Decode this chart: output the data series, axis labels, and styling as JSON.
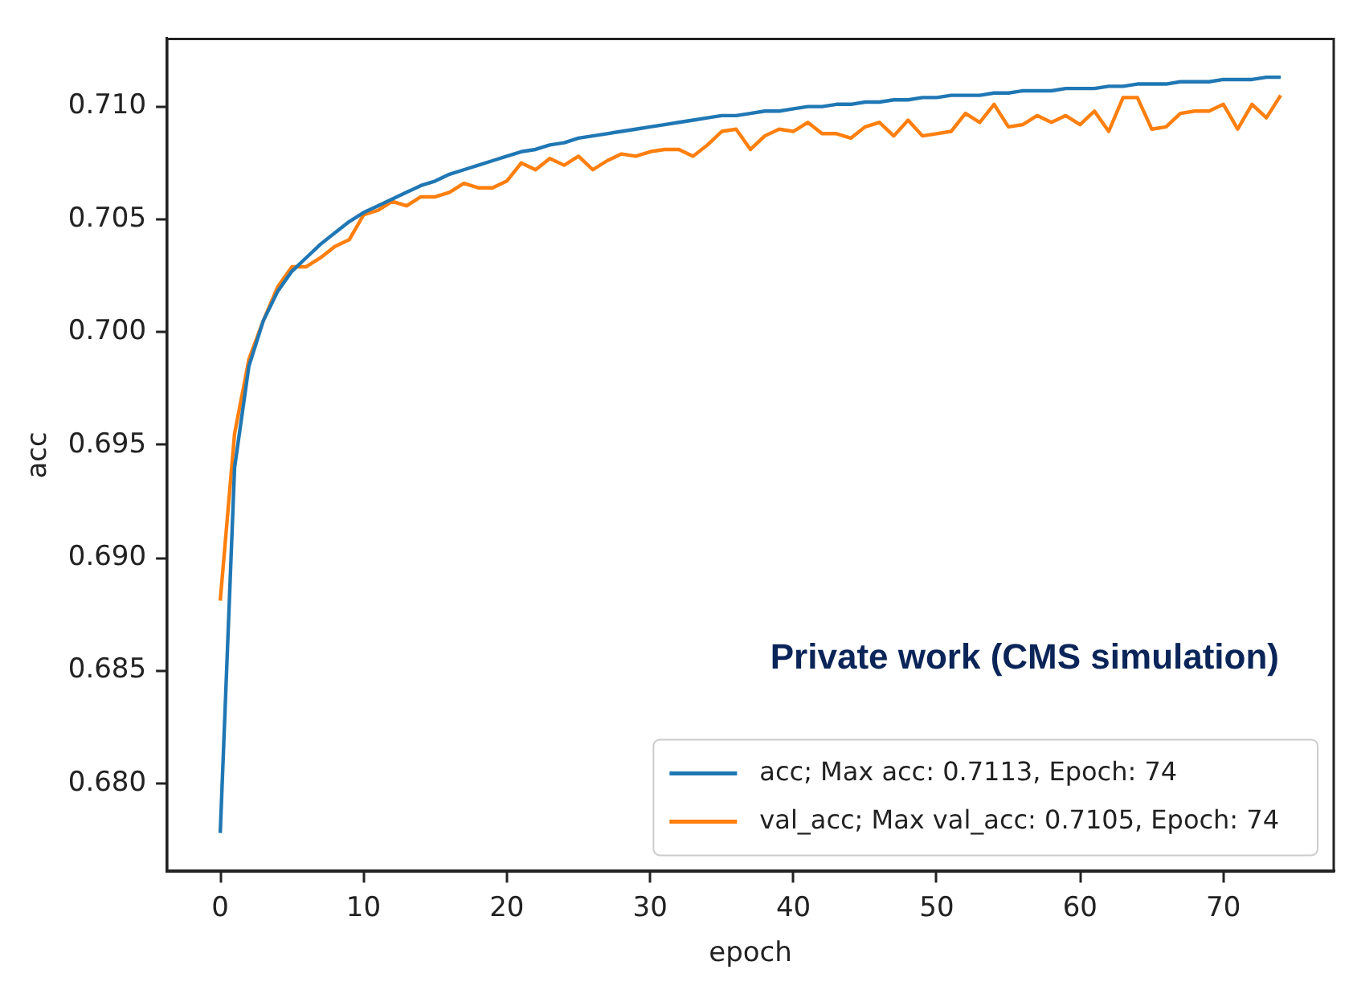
{
  "chart_data": {
    "type": "line",
    "xlabel": "epoch",
    "ylabel": "acc",
    "x": [
      0,
      1,
      2,
      3,
      4,
      5,
      6,
      7,
      8,
      9,
      10,
      11,
      12,
      13,
      14,
      15,
      16,
      17,
      18,
      19,
      20,
      21,
      22,
      23,
      24,
      25,
      26,
      27,
      28,
      29,
      30,
      31,
      32,
      33,
      34,
      35,
      36,
      37,
      38,
      39,
      40,
      41,
      42,
      43,
      44,
      45,
      46,
      47,
      48,
      49,
      50,
      51,
      52,
      53,
      54,
      55,
      56,
      57,
      58,
      59,
      60,
      61,
      62,
      63,
      64,
      65,
      66,
      67,
      68,
      69,
      70,
      71,
      72,
      73,
      74
    ],
    "series": [
      {
        "name": "acc; Max acc: 0.7113, Epoch: 74",
        "color": "#1f77b4",
        "values": [
          0.6778,
          0.694,
          0.6985,
          0.7005,
          0.7018,
          0.7027,
          0.7033,
          0.7039,
          0.7044,
          0.7049,
          0.7053,
          0.7056,
          0.7059,
          0.7062,
          0.7065,
          0.7067,
          0.707,
          0.7072,
          0.7074,
          0.7076,
          0.7078,
          0.708,
          0.7081,
          0.7083,
          0.7084,
          0.7086,
          0.7087,
          0.7088,
          0.7089,
          0.709,
          0.7091,
          0.7092,
          0.7093,
          0.7094,
          0.7095,
          0.7096,
          0.7096,
          0.7097,
          0.7098,
          0.7098,
          0.7099,
          0.71,
          0.71,
          0.7101,
          0.7101,
          0.7102,
          0.7102,
          0.7103,
          0.7103,
          0.7104,
          0.7104,
          0.7105,
          0.7105,
          0.7105,
          0.7106,
          0.7106,
          0.7107,
          0.7107,
          0.7107,
          0.7108,
          0.7108,
          0.7108,
          0.7109,
          0.7109,
          0.711,
          0.711,
          0.711,
          0.7111,
          0.7111,
          0.7111,
          0.7112,
          0.7112,
          0.7112,
          0.7113,
          0.7113
        ]
      },
      {
        "name": "val_acc; Max val_acc: 0.7105, Epoch: 74",
        "color": "#ff7f0e",
        "values": [
          0.6881,
          0.6955,
          0.6988,
          0.7005,
          0.702,
          0.7029,
          0.7029,
          0.7033,
          0.7038,
          0.7041,
          0.7052,
          0.7054,
          0.7058,
          0.7056,
          0.706,
          0.706,
          0.7062,
          0.7066,
          0.7064,
          0.7064,
          0.7067,
          0.7075,
          0.7072,
          0.7077,
          0.7074,
          0.7078,
          0.7072,
          0.7076,
          0.7079,
          0.7078,
          0.708,
          0.7081,
          0.7081,
          0.7078,
          0.7083,
          0.7089,
          0.709,
          0.7081,
          0.7087,
          0.709,
          0.7089,
          0.7093,
          0.7088,
          0.7088,
          0.7086,
          0.7091,
          0.7093,
          0.7087,
          0.7094,
          0.7087,
          0.7088,
          0.7089,
          0.7097,
          0.7093,
          0.7101,
          0.7091,
          0.7092,
          0.7096,
          0.7093,
          0.7096,
          0.7092,
          0.7098,
          0.7089,
          0.7104,
          0.7104,
          0.709,
          0.7091,
          0.7097,
          0.7098,
          0.7098,
          0.7101,
          0.709,
          0.7101,
          0.7095,
          0.7105
        ]
      }
    ],
    "xlim": [
      -3.7,
      77.7
    ],
    "xticks": [
      0,
      10,
      20,
      30,
      40,
      50,
      60,
      70
    ],
    "ylim": [
      0.6761,
      0.713
    ],
    "yticks": [
      {
        "value": 0.68,
        "label": "0.680"
      },
      {
        "value": 0.685,
        "label": "0.685"
      },
      {
        "value": 0.69,
        "label": "0.690"
      },
      {
        "value": 0.695,
        "label": "0.695"
      },
      {
        "value": 0.7,
        "label": "0.700"
      },
      {
        "value": 0.705,
        "label": "0.705"
      },
      {
        "value": 0.71,
        "label": "0.710"
      }
    ],
    "annotations": [
      "Private work (CMS simulation)"
    ],
    "legend": "bottom right",
    "grid": false,
    "marker": "none",
    "line_style": "solid"
  }
}
